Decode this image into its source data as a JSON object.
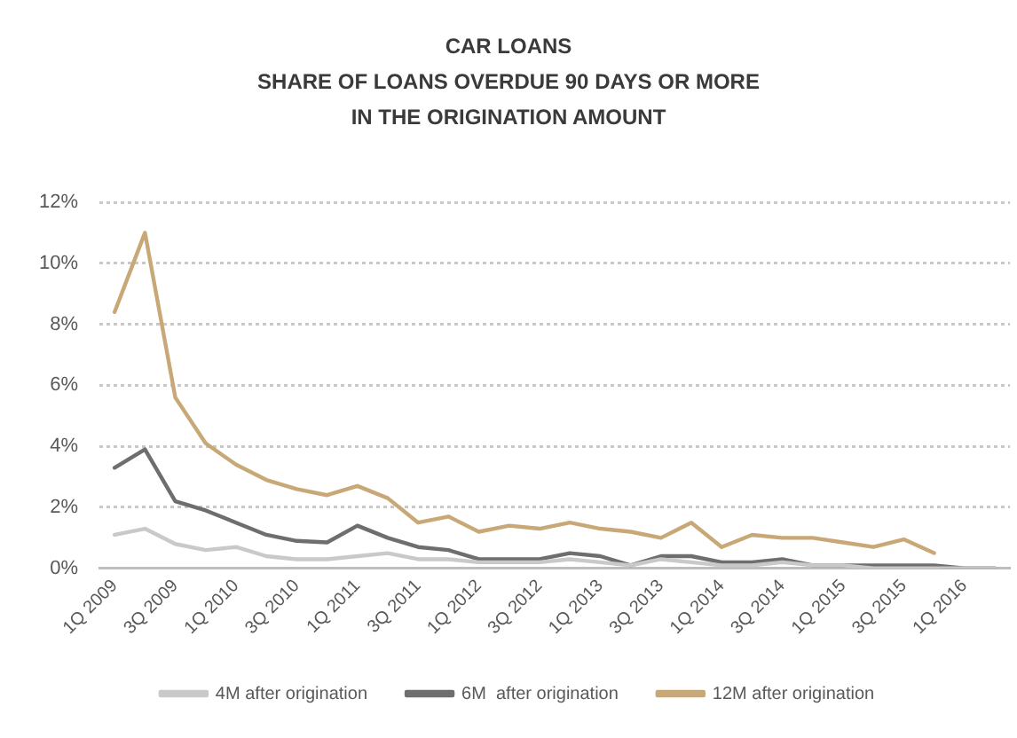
{
  "chart_data": {
    "type": "line",
    "title": "CAR LOANS",
    "subtitle": "SHARE OF LOANS OVERDUE 90 DAYS OR MORE IN THE ORIGINATION AMOUNT",
    "categories": [
      "1Q 2009",
      null,
      "3Q 2009",
      null,
      "1Q 2010",
      null,
      "3Q 2010",
      null,
      "1Q 2011",
      null,
      "3Q 2011",
      null,
      "1Q 2012",
      null,
      "3Q 2012",
      null,
      "1Q 2013",
      null,
      "3Q 2013",
      null,
      "1Q 2014",
      null,
      "3Q 2014",
      null,
      "1Q 2015",
      null,
      "3Q 2015",
      null,
      "1Q 2016",
      null
    ],
    "series": [
      {
        "name": "4M after origination",
        "color": "#c9c9c9",
        "values": [
          1.1,
          1.3,
          0.8,
          0.6,
          0.7,
          0.4,
          0.3,
          0.3,
          0.4,
          0.5,
          0.3,
          0.3,
          0.2,
          0.2,
          0.2,
          0.3,
          0.2,
          0.1,
          0.3,
          0.2,
          0.1,
          0.1,
          0.2,
          0.1,
          0.1,
          0.0,
          0.0,
          0.0,
          0.0,
          0.0
        ]
      },
      {
        "name": "6M  after origination",
        "color": "#6e6e6e",
        "values": [
          3.3,
          3.9,
          2.2,
          1.9,
          1.5,
          1.1,
          0.9,
          0.85,
          1.4,
          1.0,
          0.7,
          0.6,
          0.3,
          0.3,
          0.3,
          0.5,
          0.4,
          0.1,
          0.4,
          0.4,
          0.2,
          0.2,
          0.3,
          0.1,
          0.1,
          0.1,
          0.1,
          0.1,
          0.0,
          0.0
        ]
      },
      {
        "name": "12M after origination",
        "color": "#c9a877",
        "values": [
          8.4,
          11.0,
          5.6,
          4.1,
          3.4,
          2.9,
          2.6,
          2.4,
          2.7,
          2.3,
          1.5,
          1.7,
          1.2,
          1.4,
          1.3,
          1.5,
          1.3,
          1.2,
          1.0,
          1.5,
          0.7,
          1.1,
          1.0,
          1.0,
          0.85,
          0.7,
          0.95,
          0.5,
          null,
          null
        ]
      }
    ],
    "ylim": [
      0,
      12
    ],
    "yticks": [
      {
        "value": 0,
        "label": "0%"
      },
      {
        "value": 2,
        "label": "2%"
      },
      {
        "value": 4,
        "label": "4%"
      },
      {
        "value": 6,
        "label": "6%"
      },
      {
        "value": 8,
        "label": "8%"
      },
      {
        "value": 10,
        "label": "10%"
      },
      {
        "value": 12,
        "label": "12%"
      }
    ],
    "grid": "y",
    "legend": "bottom",
    "marker": "none"
  }
}
